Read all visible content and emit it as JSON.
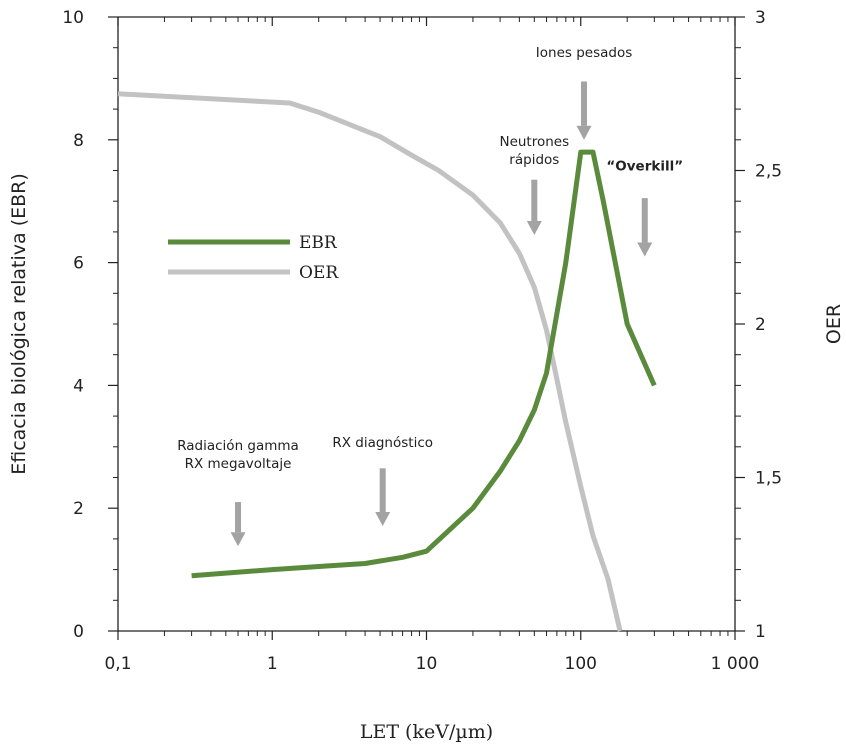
{
  "chart_data": {
    "type": "line",
    "xlabel": "LET (keV/µm)",
    "x_scale": "log",
    "xlim": [
      0.1,
      1000
    ],
    "x_ticks": [
      0.1,
      1,
      10,
      100,
      1000
    ],
    "x_tick_labels": [
      "0,1",
      "1",
      "10",
      "100",
      "1 000"
    ],
    "ylabel_left": "Eficacia biológica relativa (EBR)",
    "ylim_left": [
      0,
      10
    ],
    "y_ticks_left": [
      0,
      2,
      4,
      6,
      8,
      10
    ],
    "y_tick_labels_left": [
      "0",
      "2",
      "4",
      "6",
      "8",
      "10"
    ],
    "ylabel_right": "OER",
    "ylim_right": [
      1,
      3
    ],
    "y_ticks_right": [
      1,
      1.5,
      2,
      2.5,
      3
    ],
    "y_tick_labels_right": [
      "1",
      "1,5",
      "2",
      "2,5",
      "3"
    ],
    "grid": false,
    "legend_position": "left-middle",
    "series": [
      {
        "name": "EBR",
        "axis": "left",
        "color": "#5a8a3c",
        "x": [
          0.3,
          1,
          2,
          4,
          7,
          10,
          20,
          30,
          40,
          50,
          60,
          80,
          100,
          120,
          140,
          200,
          300
        ],
        "y": [
          0.9,
          1.0,
          1.05,
          1.1,
          1.2,
          1.3,
          2.0,
          2.6,
          3.1,
          3.6,
          4.2,
          6.0,
          7.8,
          7.8,
          7.0,
          5.0,
          4.0
        ]
      },
      {
        "name": "OER",
        "axis": "right",
        "color": "#c2c2c2",
        "x": [
          0.1,
          1.3,
          2,
          5,
          8,
          12,
          20,
          30,
          40,
          50,
          60,
          70,
          80,
          100,
          120,
          150,
          180
        ],
        "y": [
          2.75,
          2.72,
          2.69,
          2.61,
          2.55,
          2.5,
          2.42,
          2.33,
          2.23,
          2.12,
          1.98,
          1.82,
          1.68,
          1.47,
          1.31,
          1.17,
          1.0
        ]
      }
    ],
    "annotations": [
      {
        "lines": [
          "Radiación gamma",
          "RX megavoltaje"
        ],
        "bold": false,
        "x": 0.6,
        "text_y": 2.95,
        "arrow_top": 2.1,
        "arrow_bottom": 1.38
      },
      {
        "lines": [
          "RX diagnóstico"
        ],
        "bold": false,
        "x": 5.2,
        "text_y": 3.0,
        "arrow_top": 2.65,
        "arrow_bottom": 1.71
      },
      {
        "lines": [
          "Neutrones",
          "rápidos"
        ],
        "bold": false,
        "x": 50,
        "text_y": 7.9,
        "arrow_top": 7.35,
        "arrow_bottom": 6.45
      },
      {
        "lines": [
          "Iones pesados"
        ],
        "bold": false,
        "x": 105,
        "text_y": 9.35,
        "arrow_top": 8.95,
        "arrow_bottom": 8.0
      },
      {
        "lines": [
          "“Overkill”"
        ],
        "bold": true,
        "x": 260,
        "text_y": 7.5,
        "arrow_top": 7.05,
        "arrow_bottom": 6.1
      }
    ]
  }
}
